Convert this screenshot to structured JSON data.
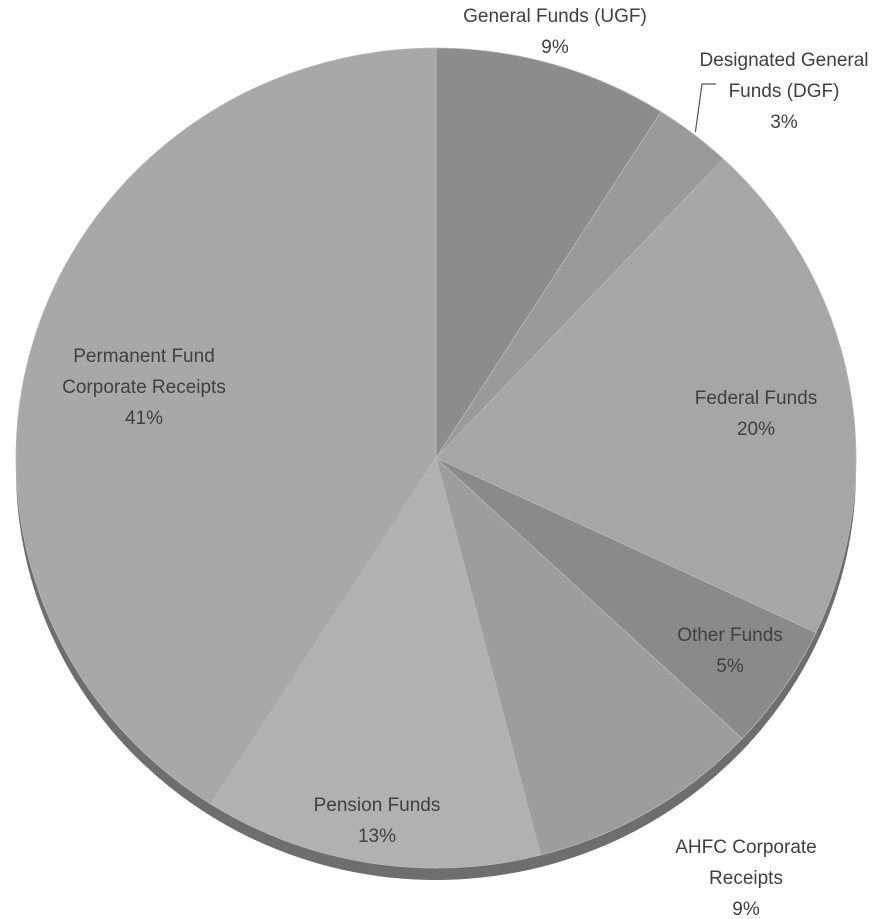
{
  "chart_data": {
    "type": "pie",
    "title": "",
    "slices": [
      {
        "label": "General Funds (UGF)",
        "value": 9,
        "display": "9%",
        "color": "#8c8c8c"
      },
      {
        "label": "Designated General Funds (DGF)",
        "value": 3,
        "display": "3%",
        "color": "#9a9a9a"
      },
      {
        "label": "Federal Funds",
        "value": 20,
        "display": "20%",
        "color": "#a6a6a6"
      },
      {
        "label": "Other Funds",
        "value": 5,
        "display": "5%",
        "color": "#8a8a8a"
      },
      {
        "label": "AHFC Corporate Receipts",
        "value": 9,
        "display": "9%",
        "color": "#9d9d9d"
      },
      {
        "label": "Pension Funds",
        "value": 13,
        "display": "13%",
        "color": "#b1b1b1"
      },
      {
        "label": "Permanent Fund Corporate Receipts",
        "value": 41,
        "display": "41%",
        "color": "#a8a8a8"
      }
    ],
    "label_lines": [
      [
        "General Funds (UGF)",
        "9%"
      ],
      [
        "Designated General",
        "Funds (DGF)",
        "3%"
      ],
      [
        "Federal Funds",
        "20%"
      ],
      [
        "Other Funds",
        "5%"
      ],
      [
        "AHFC Corporate",
        "Receipts",
        "9%"
      ],
      [
        "Pension Funds",
        "13%"
      ],
      [
        "Permanent Fund",
        "Corporate Receipts",
        "41%"
      ]
    ],
    "legend": "none",
    "label_text_color": "#404040",
    "shadow_color": "#6e6e6e"
  }
}
